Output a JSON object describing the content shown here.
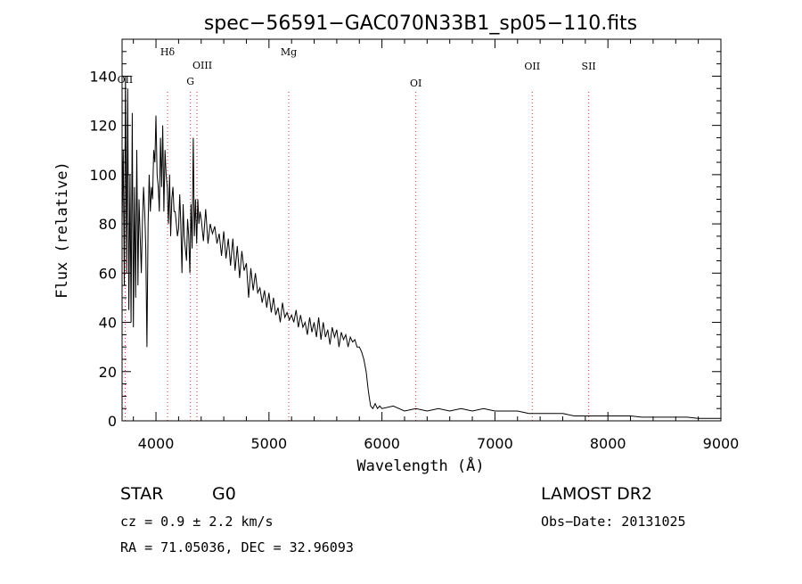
{
  "chart_data": {
    "type": "line",
    "title": "spec−56591−GAC070N33B1_sp05−110.fits",
    "xlabel": "Wavelength (Å)",
    "ylabel": "Flux (relative)",
    "xlim": [
      3700,
      9000
    ],
    "ylim": [
      0,
      155
    ],
    "x_ticks": [
      4000,
      5000,
      6000,
      7000,
      8000,
      9000
    ],
    "y_ticks": [
      0,
      20,
      40,
      60,
      80,
      100,
      120,
      140
    ],
    "line_color": "#000000",
    "marker_color": "#d03030",
    "series": [
      {
        "x": [
          3700,
          3710,
          3720,
          3730,
          3740,
          3750,
          3760,
          3770,
          3780,
          3790,
          3800,
          3810,
          3820,
          3830,
          3840,
          3850,
          3860,
          3870,
          3880,
          3890,
          3900,
          3910,
          3920,
          3930,
          3940,
          3950,
          3960,
          3970,
          3980,
          3990,
          4000,
          4010,
          4020,
          4030,
          4040,
          4050,
          4060,
          4070,
          4080,
          4090,
          4100,
          4110,
          4120,
          4130,
          4140,
          4150,
          4160,
          4170,
          4180,
          4190,
          4200,
          4210,
          4220,
          4230,
          4240,
          4250,
          4260,
          4270,
          4280,
          4290,
          4300,
          4310,
          4320,
          4330,
          4340,
          4350,
          4360,
          4370,
          4380,
          4390,
          4400,
          4420,
          4440,
          4460,
          4480,
          4500,
          4520,
          4540,
          4560,
          4580,
          4600,
          4620,
          4640,
          4660,
          4680,
          4700,
          4720,
          4740,
          4760,
          4780,
          4800,
          4820,
          4840,
          4860,
          4880,
          4900,
          4920,
          4940,
          4960,
          4980,
          5000,
          5020,
          5040,
          5060,
          5080,
          5100,
          5120,
          5140,
          5160,
          5180,
          5200,
          5220,
          5240,
          5260,
          5280,
          5300,
          5320,
          5340,
          5360,
          5380,
          5400,
          5420,
          5440,
          5460,
          5480,
          5500,
          5520,
          5540,
          5560,
          5580,
          5600,
          5620,
          5640,
          5660,
          5680,
          5700,
          5720,
          5740,
          5760,
          5780,
          5800,
          5820,
          5840,
          5860,
          5880,
          5900,
          5920,
          5940,
          5960,
          5980,
          6000,
          6100,
          6200,
          6300,
          6400,
          6500,
          6600,
          6700,
          6800,
          6900,
          7000,
          7100,
          7200,
          7300,
          7400,
          7500,
          7600,
          7700,
          7800,
          7900,
          8000,
          8100,
          8200,
          8300,
          8400,
          8500,
          8600,
          8700,
          8800,
          8900,
          9000
        ],
        "y": [
          80,
          110,
          55,
          140,
          60,
          135,
          45,
          100,
          40,
          125,
          38,
          95,
          50,
          110,
          55,
          90,
          75,
          60,
          80,
          95,
          85,
          70,
          30,
          80,
          100,
          85,
          95,
          90,
          110,
          105,
          124,
          100,
          95,
          85,
          115,
          95,
          120,
          85,
          110,
          100,
          95,
          80,
          100,
          75,
          90,
          95,
          85,
          85,
          80,
          75,
          78,
          92,
          80,
          60,
          88,
          75,
          70,
          65,
          82,
          75,
          60,
          88,
          70,
          115,
          75,
          90,
          72,
          90,
          80,
          85,
          82,
          73,
          86,
          72,
          80,
          76,
          79,
          72,
          76,
          67,
          77,
          66,
          74,
          63,
          74,
          61,
          71,
          58,
          69,
          61,
          64,
          50,
          62,
          53,
          60,
          52,
          54,
          48,
          53,
          46,
          52,
          44,
          50,
          43,
          46,
          40,
          48,
          42,
          44,
          41,
          43,
          40,
          45,
          38,
          43,
          38,
          40,
          35,
          42,
          36,
          40,
          34,
          42,
          33,
          40,
          34,
          37,
          31,
          38,
          34,
          37,
          30,
          36,
          33,
          35,
          30,
          34,
          32,
          33,
          30,
          30,
          28,
          25,
          20,
          12,
          6,
          5,
          7,
          5,
          6,
          5,
          6,
          4,
          5,
          4,
          5,
          4,
          5,
          4,
          5,
          4,
          4,
          4,
          3,
          3,
          3,
          3,
          2,
          2,
          2,
          2,
          2,
          2,
          1.5,
          1.5,
          1.5,
          1.5,
          1.5,
          1,
          1,
          1
        ]
      }
    ],
    "line_markers": [
      {
        "label": "OII",
        "x": 3727
      },
      {
        "label": "Hδ",
        "x": 4102
      },
      {
        "label": "G",
        "x": 4305
      },
      {
        "label": "OIII",
        "x": 4363
      },
      {
        "label": "Mg",
        "x": 5175
      },
      {
        "label": "OI",
        "x": 6300
      },
      {
        "label": "OII",
        "x": 7330
      },
      {
        "label": "SII",
        "x": 7830
      }
    ]
  },
  "info": {
    "object_class": "STAR",
    "subclass": "G0",
    "survey": "LAMOST DR2",
    "redshift": "cz = 0.9 ± 2.2 km/s",
    "obs_date": "Obs−Date: 20131025",
    "coords": "RA =  71.05036, DEC =  32.96093"
  }
}
